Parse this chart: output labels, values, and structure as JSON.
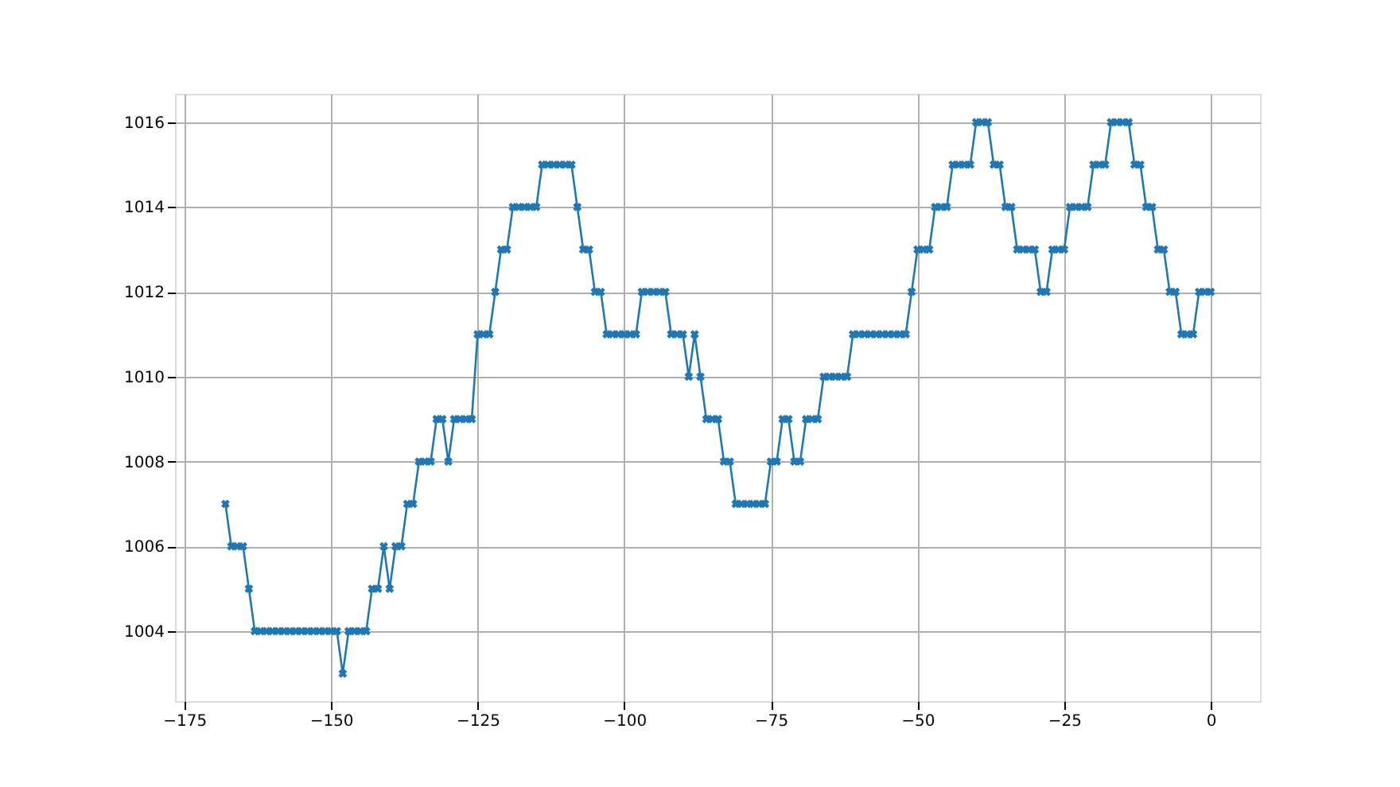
{
  "chart_data": {
    "type": "line",
    "x": [
      -168,
      -167,
      -166,
      -165,
      -164,
      -163,
      -162,
      -161,
      -160,
      -159,
      -158,
      -157,
      -156,
      -155,
      -154,
      -153,
      -152,
      -151,
      -150,
      -149,
      -148,
      -147,
      -146,
      -145,
      -144,
      -143,
      -142,
      -141,
      -140,
      -139,
      -138,
      -137,
      -136,
      -135,
      -134,
      -133,
      -132,
      -131,
      -130,
      -129,
      -128,
      -127,
      -126,
      -125,
      -124,
      -123,
      -122,
      -121,
      -120,
      -119,
      -118,
      -117,
      -116,
      -115,
      -114,
      -113,
      -112,
      -111,
      -110,
      -109,
      -108,
      -107,
      -106,
      -105,
      -104,
      -103,
      -102,
      -101,
      -100,
      -99,
      -98,
      -97,
      -96,
      -95,
      -94,
      -93,
      -92,
      -91,
      -90,
      -89,
      -88,
      -87,
      -86,
      -85,
      -84,
      -83,
      -82,
      -81,
      -80,
      -79,
      -78,
      -77,
      -76,
      -75,
      -74,
      -73,
      -72,
      -71,
      -70,
      -69,
      -68,
      -67,
      -66,
      -65,
      -64,
      -63,
      -62,
      -61,
      -60,
      -59,
      -58,
      -57,
      -56,
      -55,
      -54,
      -53,
      -52,
      -51,
      -50,
      -49,
      -48,
      -47,
      -46,
      -45,
      -44,
      -43,
      -42,
      -41,
      -40,
      -39,
      -38,
      -37,
      -36,
      -35,
      -34,
      -33,
      -32,
      -31,
      -30,
      -29,
      -28,
      -27,
      -26,
      -25,
      -24,
      -23,
      -22,
      -21,
      -20,
      -19,
      -18,
      -17,
      -16,
      -15,
      -14,
      -13,
      -12,
      -11,
      -10,
      -9,
      -8,
      -7,
      -6,
      -5,
      -4,
      -3,
      -2,
      -1,
      0
    ],
    "series": [
      {
        "color": "#1f77b4",
        "values": [
          1007,
          1006,
          1006,
          1006,
          1005,
          1004,
          1004,
          1004,
          1004,
          1004,
          1004,
          1004,
          1004,
          1004,
          1004,
          1004,
          1004,
          1004,
          1004,
          1004,
          1003,
          1004,
          1004,
          1004,
          1004,
          1005,
          1005,
          1006,
          1005,
          1006,
          1006,
          1007,
          1007,
          1008,
          1008,
          1008,
          1009,
          1009,
          1008,
          1009,
          1009,
          1009,
          1009,
          1011,
          1011,
          1011,
          1012,
          1013,
          1013,
          1014,
          1014,
          1014,
          1014,
          1014,
          1015,
          1015,
          1015,
          1015,
          1015,
          1015,
          1014,
          1013,
          1013,
          1012,
          1012,
          1011,
          1011,
          1011,
          1011,
          1011,
          1011,
          1012,
          1012,
          1012,
          1012,
          1012,
          1011,
          1011,
          1011,
          1010,
          1011,
          1010,
          1009,
          1009,
          1009,
          1008,
          1008,
          1007,
          1007,
          1007,
          1007,
          1007,
          1007,
          1008,
          1008,
          1009,
          1009,
          1008,
          1008,
          1009,
          1009,
          1009,
          1010,
          1010,
          1010,
          1010,
          1010,
          1011,
          1011,
          1011,
          1011,
          1011,
          1011,
          1011,
          1011,
          1011,
          1011,
          1012,
          1013,
          1013,
          1013,
          1014,
          1014,
          1014,
          1015,
          1015,
          1015,
          1015,
          1016,
          1016,
          1016,
          1015,
          1015,
          1014,
          1014,
          1013,
          1013,
          1013,
          1013,
          1012,
          1012,
          1013,
          1013,
          1013,
          1014,
          1014,
          1014,
          1014,
          1015,
          1015,
          1015,
          1016,
          1016,
          1016,
          1016,
          1015,
          1015,
          1014,
          1014,
          1013,
          1013,
          1012,
          1012,
          1011,
          1011,
          1011,
          1012,
          1012,
          1012
        ]
      }
    ],
    "xlim": [
      -176.6,
      8.4
    ],
    "xticks": [
      -175,
      -150,
      -125,
      -100,
      -75,
      -50,
      -25,
      0
    ],
    "ylim": [
      1002.35,
      1016.67
    ],
    "yticks": [
      1004,
      1006,
      1008,
      1010,
      1012,
      1014,
      1016
    ],
    "grid": true,
    "marker": "cross",
    "line_style": "solid"
  }
}
